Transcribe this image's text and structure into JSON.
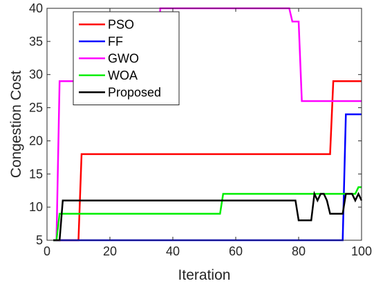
{
  "chart_data": {
    "type": "line",
    "title": "",
    "xlabel": "Iteration",
    "ylabel": "Congestion Cost",
    "xlim": [
      0,
      100
    ],
    "ylim": [
      5,
      40
    ],
    "xticks": [
      0,
      20,
      40,
      60,
      80,
      100
    ],
    "yticks": [
      5,
      10,
      15,
      20,
      25,
      30,
      35,
      40
    ],
    "grid": false,
    "legend_position": "top-left",
    "series": [
      {
        "name": "PSO",
        "color": "#ff0000",
        "points": [
          [
            2,
            5
          ],
          [
            10,
            5
          ],
          [
            11,
            18
          ],
          [
            90,
            18
          ],
          [
            91,
            29
          ],
          [
            100,
            29
          ]
        ]
      },
      {
        "name": "FF",
        "color": "#0000ff",
        "points": [
          [
            2,
            5
          ],
          [
            94,
            5
          ],
          [
            95,
            24
          ],
          [
            100,
            24
          ]
        ]
      },
      {
        "name": "GWO",
        "color": "#ff00ff",
        "points": [
          [
            2,
            5
          ],
          [
            3,
            5
          ],
          [
            4,
            29
          ],
          [
            11,
            29
          ],
          [
            12,
            30
          ],
          [
            35,
            30
          ],
          [
            36,
            40
          ],
          [
            77,
            40
          ],
          [
            78,
            38
          ],
          [
            80,
            38
          ],
          [
            81,
            26
          ],
          [
            100,
            26
          ]
        ]
      },
      {
        "name": "WOA",
        "color": "#00ee00",
        "points": [
          [
            2,
            5
          ],
          [
            3,
            5
          ],
          [
            4,
            9
          ],
          [
            55,
            9
          ],
          [
            56,
            12
          ],
          [
            98,
            12
          ],
          [
            99,
            13
          ],
          [
            100,
            13
          ]
        ]
      },
      {
        "name": "Proposed",
        "color": "#000000",
        "points": [
          [
            2,
            5
          ],
          [
            4,
            5
          ],
          [
            5,
            11
          ],
          [
            79,
            11
          ],
          [
            80,
            8
          ],
          [
            84,
            8
          ],
          [
            85,
            12
          ],
          [
            86,
            11
          ],
          [
            87,
            12
          ],
          [
            88,
            12
          ],
          [
            89,
            11
          ],
          [
            90,
            9
          ],
          [
            94,
            9
          ],
          [
            95,
            12
          ],
          [
            97,
            12
          ],
          [
            98,
            11
          ],
          [
            99,
            12
          ],
          [
            100,
            11
          ]
        ]
      }
    ]
  }
}
